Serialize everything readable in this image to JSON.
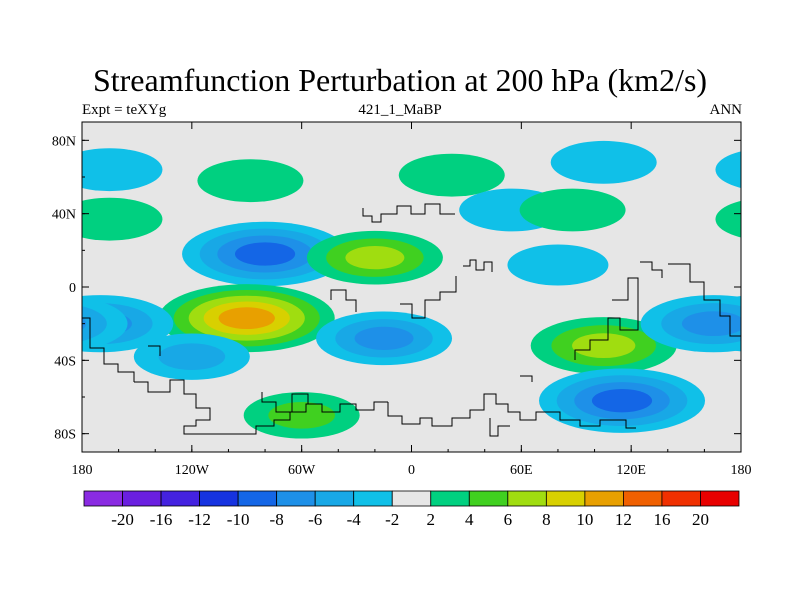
{
  "title": "Streamfunction Perturbation at 200 hPa (km2/s)",
  "subtitle_left": "Expt = teXYg",
  "subtitle_center": "421_1_MaBP",
  "subtitle_right": "ANN",
  "map": {
    "lon_range": [
      -180,
      180
    ],
    "lat_range": [
      -90,
      90
    ],
    "background_color": "#e6e6e6",
    "lat_ticks": [
      {
        "lat": 80,
        "label": "80N"
      },
      {
        "lat": 40,
        "label": "40N"
      },
      {
        "lat": 0,
        "label": "0"
      },
      {
        "lat": -40,
        "label": "40S"
      },
      {
        "lat": -80,
        "label": "80S"
      }
    ],
    "lon_ticks": [
      {
        "lon": -180,
        "label": "180"
      },
      {
        "lon": -120,
        "label": "120W"
      },
      {
        "lon": -60,
        "label": "60W"
      },
      {
        "lon": 0,
        "label": "0"
      },
      {
        "lon": 60,
        "label": "60E"
      },
      {
        "lon": 120,
        "label": "120E"
      },
      {
        "lon": 180,
        "label": "180"
      }
    ]
  },
  "colorbar": {
    "levels": [
      "-20",
      "-16",
      "-12",
      "-10",
      "-8",
      "-6",
      "-4",
      "-2",
      "2",
      "4",
      "6",
      "8",
      "10",
      "12",
      "16",
      "20"
    ],
    "colors": [
      "#8a2be2",
      "#6a1fe0",
      "#4422e0",
      "#1633e0",
      "#1466e6",
      "#1e90e8",
      "#18a8e6",
      "#10c0e8",
      "#e6e6e6",
      "#00d080",
      "#40d020",
      "#a0dd10",
      "#d8d000",
      "#e8a000",
      "#f06000",
      "#f03000",
      "#e80000"
    ]
  },
  "chart_data": {
    "type": "heatmap",
    "title": "Streamfunction Perturbation at 200 hPa (km2/s)",
    "xlabel": "",
    "ylabel": "",
    "xlim": [
      -180,
      180
    ],
    "ylim": [
      -90,
      90
    ],
    "x_ticks": [
      "180",
      "120W",
      "60W",
      "0",
      "60E",
      "120E",
      "180"
    ],
    "y_ticks": [
      "80N",
      "40N",
      "0",
      "40S",
      "80S"
    ],
    "contour_levels": [
      -20,
      -16,
      -12,
      -10,
      -8,
      -6,
      -4,
      -2,
      2,
      4,
      6,
      8,
      10,
      12,
      16,
      20
    ],
    "features": [
      {
        "lon": -165,
        "lat": 64,
        "peak": -3
      },
      {
        "lon": -88,
        "lat": 58,
        "peak": 3
      },
      {
        "lon": -80,
        "lat": 18,
        "peak": -9
      },
      {
        "lon": -165,
        "lat": 37,
        "peak": 3
      },
      {
        "lon": -90,
        "lat": -17,
        "peak": 10
      },
      {
        "lon": -170,
        "lat": -20,
        "peak": -7
      },
      {
        "lon": -20,
        "lat": 16,
        "peak": 6
      },
      {
        "lon": 22,
        "lat": 61,
        "peak": 3
      },
      {
        "lon": 55,
        "lat": 42,
        "peak": -3
      },
      {
        "lon": 105,
        "lat": 68,
        "peak": -3
      },
      {
        "lon": 88,
        "lat": 42,
        "peak": 3
      },
      {
        "lon": 80,
        "lat": 12,
        "peak": -2.5
      },
      {
        "lon": -15,
        "lat": -28,
        "peak": -6
      },
      {
        "lon": 105,
        "lat": -32,
        "peak": 7
      },
      {
        "lon": 165,
        "lat": -20,
        "peak": -7
      },
      {
        "lon": -120,
        "lat": -38,
        "peak": -4
      },
      {
        "lon": -60,
        "lat": -70,
        "peak": 4
      },
      {
        "lon": 115,
        "lat": -62,
        "peak": -9
      }
    ]
  }
}
